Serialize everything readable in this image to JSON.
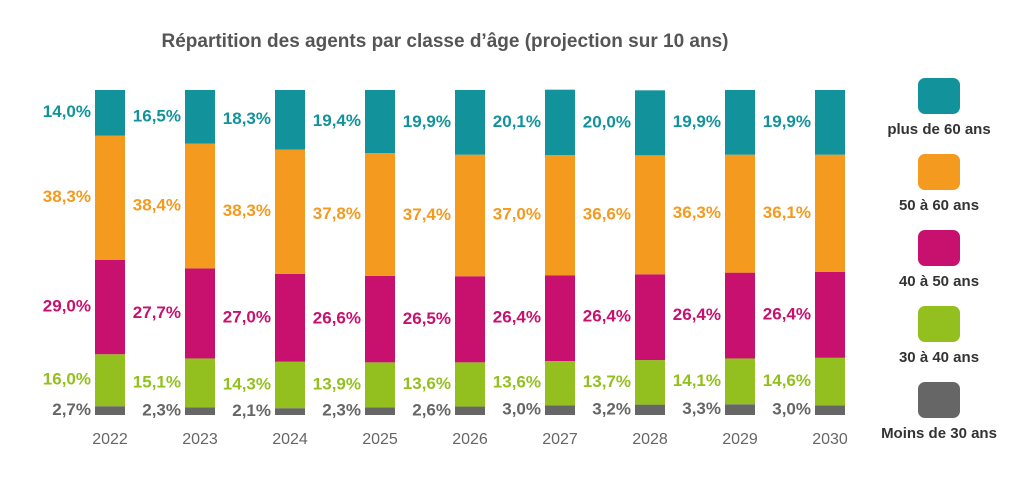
{
  "chart_data": {
    "type": "stacked-bar",
    "title": "Répartition des agents par classe d’âge (projection sur 10 ans)",
    "categories": [
      "2022",
      "2023",
      "2024",
      "2025",
      "2026",
      "2027",
      "2028",
      "2029",
      "2030"
    ],
    "series": [
      {
        "name": "plus de 60 ans",
        "color": "#12939c",
        "values": [
          14.0,
          16.5,
          18.3,
          19.4,
          19.9,
          20.1,
          20.0,
          19.9,
          19.9
        ],
        "value_labels": [
          "14,0%",
          "16,5%",
          "18,3%",
          "19,4%",
          "19,9%",
          "20,1%",
          "20,0%",
          "19,9%",
          "19,9%"
        ]
      },
      {
        "name": "50 à 60 ans",
        "color": "#f39a1f",
        "values": [
          38.3,
          38.4,
          38.3,
          37.8,
          37.4,
          37.0,
          36.6,
          36.3,
          36.1
        ],
        "value_labels": [
          "38,3%",
          "38,4%",
          "38,3%",
          "37,8%",
          "37,4%",
          "37,0%",
          "36,6%",
          "36,3%",
          "36,1%"
        ]
      },
      {
        "name": "40 à 50 ans",
        "color": "#c8106e",
        "values": [
          29.0,
          27.7,
          27.0,
          26.6,
          26.5,
          26.4,
          26.4,
          26.4,
          26.4
        ],
        "value_labels": [
          "29,0%",
          "27,7%",
          "27,0%",
          "26,6%",
          "26,5%",
          "26,4%",
          "26,4%",
          "26,4%",
          "26,4%"
        ]
      },
      {
        "name": "30 à 40 ans",
        "color": "#93c01f",
        "values": [
          16.0,
          15.1,
          14.3,
          13.9,
          13.6,
          13.6,
          13.7,
          14.1,
          14.6
        ],
        "value_labels": [
          "16,0%",
          "15,1%",
          "14,3%",
          "13,9%",
          "13,6%",
          "13,6%",
          "13,7%",
          "14,1%",
          "14,6%"
        ]
      },
      {
        "name": "Moins de 30 ans",
        "color": "#666666",
        "values": [
          2.7,
          2.3,
          2.1,
          2.3,
          2.6,
          3.0,
          3.2,
          3.3,
          3.0
        ],
        "value_labels": [
          "2,7%",
          "2,3%",
          "2,1%",
          "2,3%",
          "2,6%",
          "3,0%",
          "3,2%",
          "3,3%",
          "3,0%"
        ]
      }
    ]
  }
}
